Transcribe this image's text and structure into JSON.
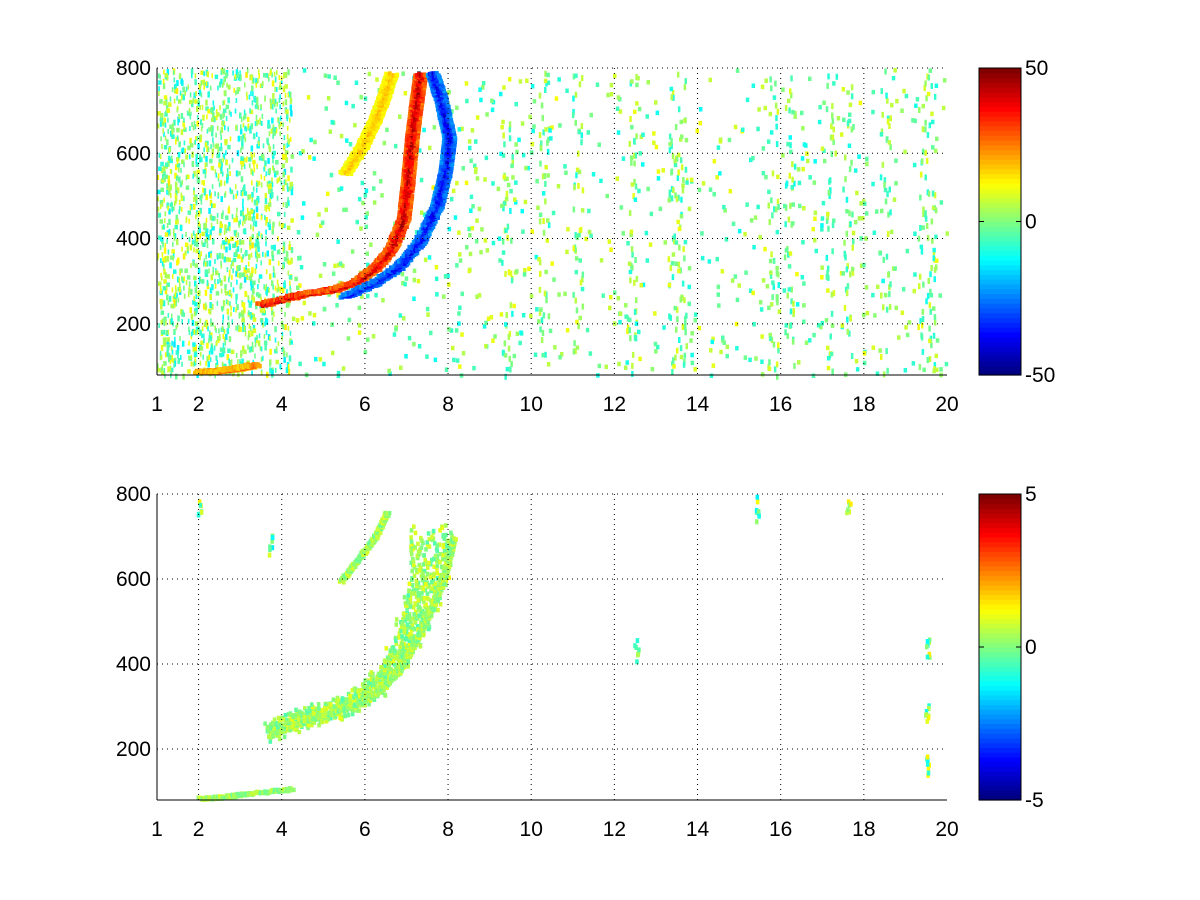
{
  "chart_data": [
    {
      "type": "heatmap",
      "title": "",
      "xlabel": "",
      "ylabel": "",
      "xlim": [
        1,
        20
      ],
      "ylim": [
        80,
        800
      ],
      "x_ticks": [
        1,
        2,
        4,
        6,
        8,
        10,
        12,
        14,
        16,
        18,
        20
      ],
      "y_ticks": [
        200,
        400,
        600,
        800
      ],
      "grid": true,
      "colormap": "jet",
      "colorbar": {
        "range": [
          -50,
          50
        ],
        "ticks": [
          -50,
          0,
          50
        ]
      },
      "features": [
        {
          "name": "upper-ridge",
          "sign": "positive",
          "points": [
            [
              3.5,
              250
            ],
            [
              4.5,
              275
            ],
            [
              5.2,
              285
            ],
            [
              5.8,
              305
            ],
            [
              6.2,
              335
            ],
            [
              6.6,
              380
            ],
            [
              6.9,
              450
            ],
            [
              7.0,
              540
            ],
            [
              7.1,
              640
            ],
            [
              7.2,
              720
            ],
            [
              7.3,
              790
            ]
          ],
          "peak": 45
        },
        {
          "name": "lower-ridge",
          "sign": "negative",
          "points": [
            [
              5.5,
              270
            ],
            [
              6.2,
              300
            ],
            [
              6.8,
              340
            ],
            [
              7.3,
              400
            ],
            [
              7.7,
              480
            ],
            [
              7.9,
              560
            ],
            [
              8.0,
              640
            ],
            [
              7.8,
              730
            ],
            [
              7.6,
              790
            ]
          ],
          "peak": -40
        },
        {
          "name": "upper-arc",
          "sign": "positive",
          "points": [
            [
              5.5,
              560
            ],
            [
              5.9,
              620
            ],
            [
              6.2,
              680
            ],
            [
              6.4,
              730
            ],
            [
              6.6,
              790
            ]
          ],
          "peak": 20
        },
        {
          "name": "low-band",
          "sign": "positive",
          "points": [
            [
              2.0,
              92
            ],
            [
              2.5,
              95
            ],
            [
              3.0,
              102
            ],
            [
              3.3,
              108
            ]
          ],
          "peak": 30
        }
      ],
      "noise_columns": [
        1.2,
        1.5,
        1.9,
        2.2,
        2.6,
        3.0,
        3.3,
        3.7,
        4.1,
        9.4,
        10.3,
        11.1,
        12.4,
        13.4,
        13.6,
        15.8,
        16.2,
        17.2,
        17.6,
        18.5,
        19.4,
        19.6
      ]
    },
    {
      "type": "heatmap",
      "title": "",
      "xlabel": "",
      "ylabel": "",
      "xlim": [
        1,
        20
      ],
      "ylim": [
        80,
        800
      ],
      "x_ticks": [
        1,
        2,
        4,
        6,
        8,
        10,
        12,
        14,
        16,
        18,
        20
      ],
      "y_ticks": [
        200,
        400,
        600,
        800
      ],
      "grid": true,
      "colormap": "jet",
      "colorbar": {
        "range": [
          -5,
          5
        ],
        "ticks": [
          -5,
          0,
          5
        ]
      },
      "features": [
        {
          "name": "filled-crescent",
          "sign": "neutral",
          "points": [
            [
              3.7,
              235
            ],
            [
              4.5,
              270
            ],
            [
              5.2,
              290
            ],
            [
              5.8,
              310
            ],
            [
              6.3,
              340
            ],
            [
              6.8,
              390
            ],
            [
              7.2,
              460
            ],
            [
              7.6,
              540
            ],
            [
              7.9,
              620
            ],
            [
              8.1,
              700
            ]
          ],
          "peak": 0
        },
        {
          "name": "upper-arc",
          "sign": "neutral",
          "points": [
            [
              5.4,
              600
            ],
            [
              5.8,
              650
            ],
            [
              6.2,
              700
            ],
            [
              6.5,
              760
            ]
          ],
          "peak": 0
        },
        {
          "name": "low-band",
          "sign": "neutral",
          "points": [
            [
              2.0,
              88
            ],
            [
              2.6,
              92
            ],
            [
              3.2,
              100
            ],
            [
              4.2,
              110
            ]
          ],
          "peak": 0
        }
      ],
      "isolated_cells": [
        [
          12.5,
          440
        ],
        [
          15.4,
          770
        ],
        [
          17.6,
          780
        ],
        [
          19.5,
          450
        ],
        [
          19.5,
          280
        ],
        [
          19.5,
          160
        ],
        [
          2.0,
          780
        ],
        [
          3.7,
          680
        ]
      ]
    }
  ]
}
